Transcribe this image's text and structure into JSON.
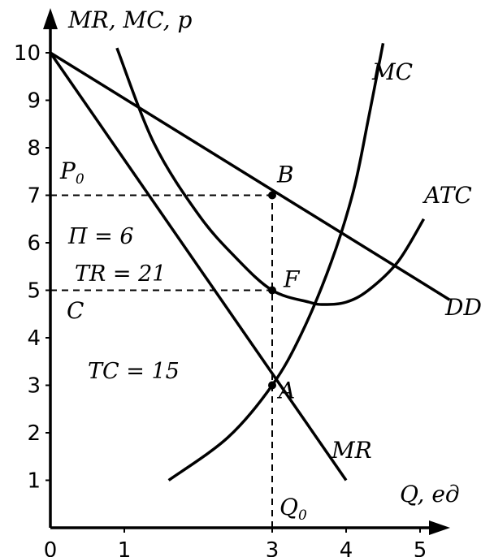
{
  "chart_data": {
    "type": "line",
    "ylabel": "MR, MC, р",
    "xlabel": "Q, ед",
    "xlim": [
      0,
      5.3
    ],
    "ylim": [
      0,
      10.6
    ],
    "x_ticks": [
      "0",
      "1",
      "3",
      "4",
      "5"
    ],
    "x_tick_values": [
      0,
      1,
      3,
      4,
      5
    ],
    "y_ticks": [
      "1",
      "2",
      "3",
      "4",
      "5",
      "6",
      "7",
      "8",
      "9",
      "10"
    ],
    "y_tick_values": [
      1,
      2,
      3,
      4,
      5,
      6,
      7,
      8,
      9,
      10
    ],
    "series": [
      {
        "name": "DD",
        "x": [
          0,
          5.4
        ],
        "y": [
          10,
          4.8
        ]
      },
      {
        "name": "MR",
        "x": [
          0,
          4.0
        ],
        "y": [
          10,
          1.0
        ]
      },
      {
        "name": "MC",
        "x": [
          1.6,
          2.4,
          3.0,
          3.4,
          3.8,
          4.1,
          4.3,
          4.5
        ],
        "y": [
          1.0,
          1.9,
          3.0,
          4.1,
          5.6,
          7.1,
          8.6,
          10.2
        ]
      },
      {
        "name": "ATC",
        "x": [
          0.9,
          1.4,
          2.0,
          2.5,
          3.0,
          3.5,
          3.7,
          4.0,
          4.3,
          4.7,
          5.05
        ],
        "y": [
          10.1,
          8.1,
          6.6,
          5.7,
          5.0,
          4.75,
          4.7,
          4.75,
          5.0,
          5.6,
          6.5
        ]
      }
    ],
    "points": [
      {
        "label": "B",
        "x": 3,
        "y": 7
      },
      {
        "label": "F",
        "x": 3,
        "y": 5
      },
      {
        "label": "A",
        "x": 3,
        "y": 3
      }
    ],
    "guides": [
      {
        "x1": 0,
        "y1": 7,
        "x2": 3,
        "y2": 7
      },
      {
        "x1": 0,
        "y1": 5,
        "x2": 3,
        "y2": 5
      },
      {
        "x1": 3,
        "y1": 0,
        "x2": 3,
        "y2": 7
      }
    ],
    "curve_labels": [
      "MC",
      "ATC",
      "DD",
      "MR"
    ],
    "annotations": {
      "p0": "P",
      "p0_sub": "0",
      "c": "C",
      "q0": "Q",
      "q0_sub": "0",
      "profit": "П = 6",
      "tr": "TR = 21",
      "tc": "TC = 15"
    },
    "grid": false
  }
}
